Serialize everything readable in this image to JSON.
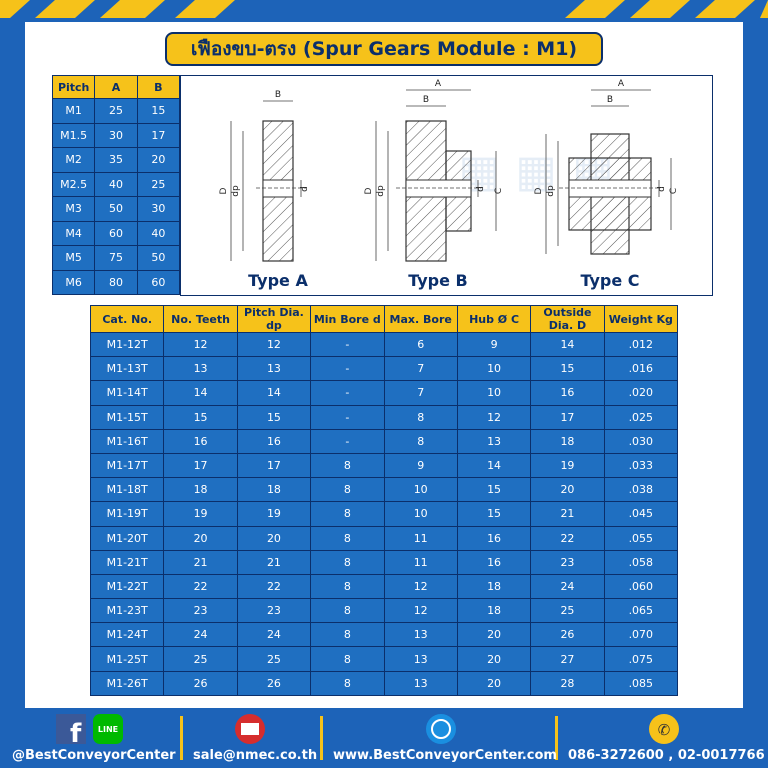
{
  "title": "เฟืองขบ-ตรง (Spur Gears Module : M1)",
  "pitch_table": {
    "headers": [
      "Pitch",
      "A",
      "B"
    ],
    "rows": [
      [
        "M1",
        "25",
        "15"
      ],
      [
        "M1.5",
        "30",
        "17"
      ],
      [
        "M2",
        "35",
        "20"
      ],
      [
        "M2.5",
        "40",
        "25"
      ],
      [
        "M3",
        "50",
        "30"
      ],
      [
        "M4",
        "60",
        "40"
      ],
      [
        "M5",
        "75",
        "50"
      ],
      [
        "M6",
        "80",
        "60"
      ]
    ]
  },
  "diagram": {
    "types": [
      {
        "label": "Type A",
        "dims": [
          "B",
          "D",
          "dp",
          "d"
        ]
      },
      {
        "label": "Type B",
        "dims": [
          "A",
          "B",
          "D",
          "dp",
          "d",
          "C"
        ]
      },
      {
        "label": "Type C",
        "dims": [
          "A",
          "B",
          "D",
          "dp",
          "C",
          "d"
        ]
      }
    ]
  },
  "table": {
    "headers": [
      "Cat. No.",
      "No. Teeth",
      "Pitch Dia. dp",
      "Min Bore d",
      "Max. Bore",
      "Hub Ø C",
      "Outside Dia. D",
      "Weight Kg"
    ],
    "rows": [
      [
        "M1-12T",
        "12",
        "12",
        "-",
        "6",
        "9",
        "14",
        ".012"
      ],
      [
        "M1-13T",
        "13",
        "13",
        "-",
        "7",
        "10",
        "15",
        ".016"
      ],
      [
        "M1-14T",
        "14",
        "14",
        "-",
        "7",
        "10",
        "16",
        ".020"
      ],
      [
        "M1-15T",
        "15",
        "15",
        "-",
        "8",
        "12",
        "17",
        ".025"
      ],
      [
        "M1-16T",
        "16",
        "16",
        "-",
        "8",
        "13",
        "18",
        ".030"
      ],
      [
        "M1-17T",
        "17",
        "17",
        "8",
        "9",
        "14",
        "19",
        ".033"
      ],
      [
        "M1-18T",
        "18",
        "18",
        "8",
        "10",
        "15",
        "20",
        ".038"
      ],
      [
        "M1-19T",
        "19",
        "19",
        "8",
        "10",
        "15",
        "21",
        ".045"
      ],
      [
        "M1-20T",
        "20",
        "20",
        "8",
        "11",
        "16",
        "22",
        ".055"
      ],
      [
        "M1-21T",
        "21",
        "21",
        "8",
        "11",
        "16",
        "23",
        ".058"
      ],
      [
        "M1-22T",
        "22",
        "22",
        "8",
        "12",
        "18",
        "24",
        ".060"
      ],
      [
        "M1-23T",
        "23",
        "23",
        "8",
        "12",
        "18",
        "25",
        ".065"
      ],
      [
        "M1-24T",
        "24",
        "24",
        "8",
        "13",
        "20",
        "26",
        ".070"
      ],
      [
        "M1-25T",
        "25",
        "25",
        "8",
        "13",
        "20",
        "27",
        ".075"
      ],
      [
        "M1-26T",
        "26",
        "26",
        "8",
        "13",
        "20",
        "28",
        ".085"
      ]
    ]
  },
  "footer": {
    "line_icon": "LINE",
    "facebook": "@BestConveyorCenter",
    "email": "sale@nmec.co.th",
    "website": "www.BestConveyorCenter.com",
    "phone": "086-3272600 , 02-0017766"
  }
}
